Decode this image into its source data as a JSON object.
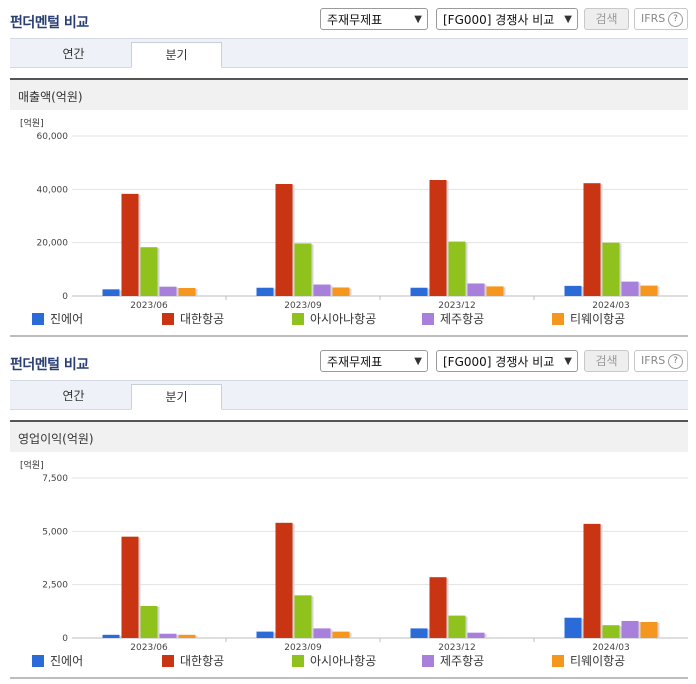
{
  "panels": [
    {
      "title": "펀더멘털 비교",
      "select_statement": "주재무제표",
      "select_compare": "[FG000] 경쟁사 비교",
      "search_button": "검색",
      "ifrs_label": "IFRS",
      "ifrs_help": "?",
      "tabs": [
        "연간",
        "분기"
      ],
      "active_tab": "분기",
      "section_title": "매출액(억원)",
      "legend": [
        "진에어",
        "대한항공",
        "아시아나항공",
        "제주항공",
        "티웨이항공"
      ]
    },
    {
      "title": "펀더멘털 비교",
      "select_statement": "주재무제표",
      "select_compare": "[FG000] 경쟁사 비교",
      "search_button": "검색",
      "ifrs_label": "IFRS",
      "ifrs_help": "?",
      "tabs": [
        "연간",
        "분기"
      ],
      "active_tab": "분기",
      "section_title": "영업이익(억원)",
      "legend": [
        "진에어",
        "대한항공",
        "아시아나항공",
        "제주항공",
        "티웨이항공"
      ]
    }
  ],
  "colors": [
    "#2a6bd8",
    "#c93513",
    "#8fc21d",
    "#a97fdc",
    "#f5961e"
  ],
  "chart_data": [
    {
      "type": "bar",
      "unit_label": "[억원]",
      "categories": [
        "2023/06",
        "2023/09",
        "2023/12",
        "2024/03"
      ],
      "series": [
        {
          "name": "진에어",
          "values": [
            2500,
            3100,
            3100,
            3800
          ]
        },
        {
          "name": "대한항공",
          "values": [
            38300,
            42000,
            43500,
            42300
          ]
        },
        {
          "name": "아시아나항공",
          "values": [
            18300,
            19700,
            20400,
            20000
          ]
        },
        {
          "name": "제주항공",
          "values": [
            3500,
            4300,
            4700,
            5400
          ]
        },
        {
          "name": "티웨이항공",
          "values": [
            3000,
            3200,
            3600,
            3900
          ]
        }
      ],
      "yticks": [
        "0",
        "20,000",
        "40,000",
        "60,000"
      ],
      "ylim": [
        0,
        60000
      ]
    },
    {
      "type": "bar",
      "unit_label": "[억원]",
      "categories": [
        "2023/06",
        "2023/09",
        "2023/12",
        "2024/03"
      ],
      "series": [
        {
          "name": "진에어",
          "values": [
            150,
            300,
            450,
            950
          ]
        },
        {
          "name": "대한항공",
          "values": [
            4750,
            5400,
            2850,
            5350
          ]
        },
        {
          "name": "아시아나항공",
          "values": [
            1500,
            2000,
            1050,
            600
          ]
        },
        {
          "name": "제주항공",
          "values": [
            200,
            450,
            250,
            800
          ]
        },
        {
          "name": "티웨이항공",
          "values": [
            150,
            300,
            0,
            750
          ]
        }
      ],
      "yticks": [
        "0",
        "2,500",
        "5,000",
        "7,500"
      ],
      "ylim": [
        0,
        7500
      ]
    }
  ]
}
